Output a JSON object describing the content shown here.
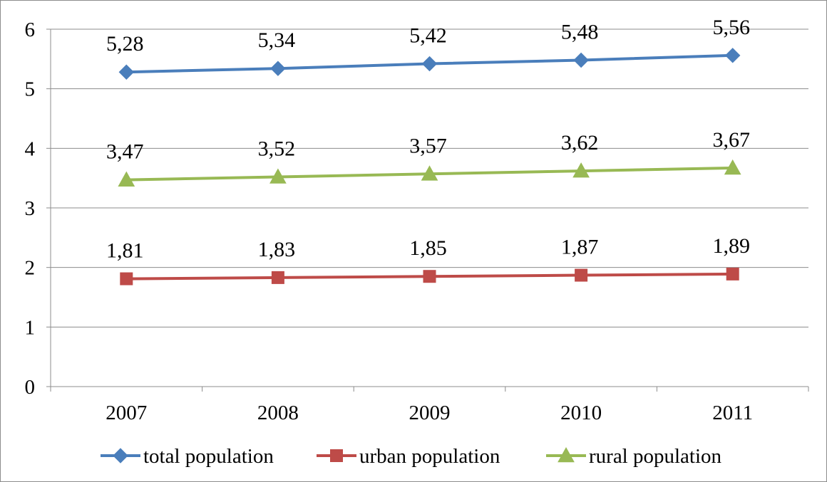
{
  "chart_data": {
    "type": "line",
    "categories": [
      "2007",
      "2008",
      "2009",
      "2010",
      "2011"
    ],
    "ylim": [
      0,
      6
    ],
    "yticks": [
      "0",
      "1",
      "2",
      "3",
      "4",
      "5",
      "6"
    ],
    "grid": true,
    "legend_position": "bottom",
    "series": [
      {
        "name": "total population",
        "values": [
          5.28,
          5.34,
          5.42,
          5.48,
          5.56
        ],
        "labels": [
          "5,28",
          "5,34",
          "5,42",
          "5,48",
          "5,56"
        ],
        "color": "#4a7ebb",
        "marker": "diamond"
      },
      {
        "name": "urban population",
        "values": [
          1.81,
          1.83,
          1.85,
          1.87,
          1.89
        ],
        "labels": [
          "1,81",
          "1,83",
          "1,85",
          "1,87",
          "1,89"
        ],
        "color": "#be4b48",
        "marker": "square"
      },
      {
        "name": "rural population",
        "values": [
          3.47,
          3.52,
          3.57,
          3.62,
          3.67
        ],
        "labels": [
          "3,47",
          "3,52",
          "3,57",
          "3,62",
          "3,67"
        ],
        "color": "#98b954",
        "marker": "triangle"
      }
    ]
  }
}
